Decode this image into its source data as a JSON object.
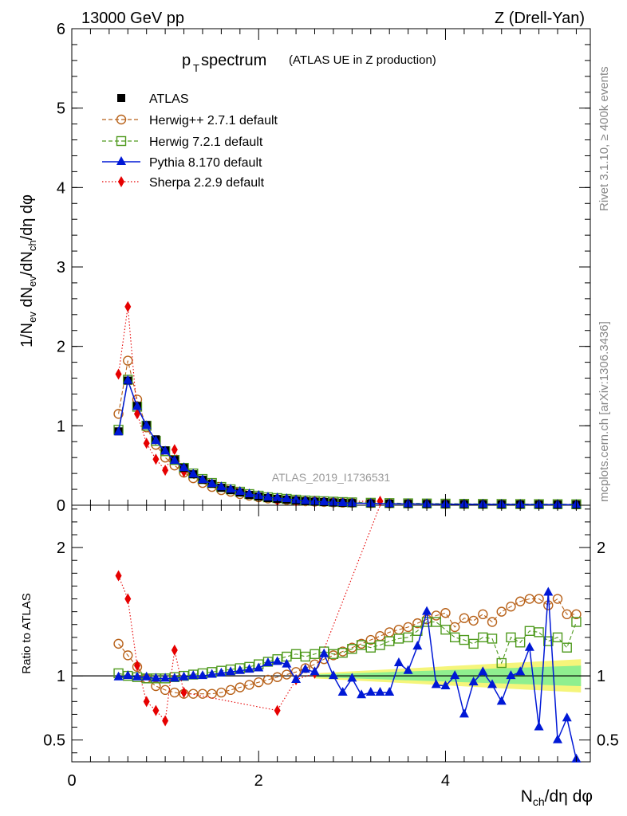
{
  "header": {
    "energy_label": "13000 GeV pp",
    "process_label": "Z (Drell-Yan)"
  },
  "side_labels": {
    "rivet": "Rivet 3.1.10, ≥ 400k events",
    "mcplots": "mcplots.cern.ch [arXiv:1306.3436]"
  },
  "colors": {
    "atlas": "#000000",
    "herwigpp": "#b8621a",
    "herwig7": "#4f9a1e",
    "pythia": "#0018d6",
    "sherpa": "#e60000",
    "band_yellow": "#f5f57a",
    "band_green": "#8fef8f"
  },
  "chart_data": [
    {
      "id": "main",
      "type": "line",
      "title_main": "p",
      "title_sub": "T",
      "title_rest": " spectrum",
      "title_note": "(ATLAS UE in Z production)",
      "ylabel_parts": [
        "1/N",
        "ev",
        " dN",
        "ev",
        "/dN",
        "ch",
        "/dη dφ"
      ],
      "watermark": "ATLAS_2019_I1736531",
      "xlim": [
        0,
        5.55
      ],
      "ylim": [
        0,
        6
      ],
      "yticks": [
        0,
        1,
        2,
        3,
        4,
        5,
        6
      ],
      "ytick_labels": [
        "0",
        "1",
        "2",
        "3",
        "4",
        "5",
        "6"
      ],
      "legend": [
        "ATLAS",
        "Herwig++ 2.7.1 default",
        "Herwig 7.2.1 default",
        "Pythia 8.170 default",
        "Sherpa 2.2.9 default"
      ],
      "series": [
        {
          "name": "ATLAS",
          "x": [
            0.5,
            0.6,
            0.7,
            0.8,
            0.9,
            1.0,
            1.1,
            1.2,
            1.3,
            1.4,
            1.5,
            1.6,
            1.7,
            1.8,
            1.9,
            2.0,
            2.1,
            2.2,
            2.3,
            2.4,
            2.5,
            2.6,
            2.7,
            2.8,
            2.9,
            3.0,
            3.2,
            3.4,
            3.6,
            3.8,
            4.0,
            4.2,
            4.4,
            4.6,
            4.8,
            5.0,
            5.2,
            5.4
          ],
          "y": [
            0.93,
            1.57,
            1.25,
            1.01,
            0.83,
            0.69,
            0.57,
            0.47,
            0.39,
            0.32,
            0.27,
            0.22,
            0.19,
            0.16,
            0.13,
            0.11,
            0.09,
            0.08,
            0.07,
            0.06,
            0.05,
            0.045,
            0.04,
            0.035,
            0.03,
            0.028,
            0.024,
            0.02,
            0.018,
            0.016,
            0.014,
            0.013,
            0.012,
            0.011,
            0.01,
            0.009,
            0.008,
            0.007
          ]
        },
        {
          "name": "Herwig++ 2.7.1 default",
          "x": [
            0.5,
            0.6,
            0.7,
            0.8,
            0.9,
            1.0,
            1.1,
            1.2,
            1.3,
            1.4,
            1.5,
            1.6,
            1.7,
            1.8,
            1.9,
            2.0,
            2.1,
            2.2,
            2.3,
            2.4,
            2.5,
            2.6,
            2.7,
            2.8,
            2.9,
            3.0,
            3.2,
            3.4,
            3.6,
            3.8,
            4.0,
            4.2,
            4.4,
            4.6,
            4.8,
            5.0,
            5.2,
            5.4
          ],
          "y": [
            1.15,
            1.82,
            1.33,
            0.98,
            0.76,
            0.6,
            0.5,
            0.41,
            0.34,
            0.28,
            0.23,
            0.19,
            0.17,
            0.14,
            0.12,
            0.1,
            0.085,
            0.075,
            0.066,
            0.058,
            0.05,
            0.045,
            0.04,
            0.036,
            0.032,
            0.03,
            0.026,
            0.022,
            0.02,
            0.018,
            0.016,
            0.015,
            0.014,
            0.013,
            0.012,
            0.011,
            0.01,
            0.009
          ]
        },
        {
          "name": "Herwig 7.2.1 default",
          "x": [
            0.5,
            0.6,
            0.7,
            0.8,
            0.9,
            1.0,
            1.1,
            1.2,
            1.3,
            1.4,
            1.5,
            1.6,
            1.7,
            1.8,
            1.9,
            2.0,
            2.1,
            2.2,
            2.3,
            2.4,
            2.5,
            2.6,
            2.7,
            2.8,
            2.9,
            3.0,
            3.2,
            3.4,
            3.6,
            3.8,
            4.0,
            4.2,
            4.4,
            4.6,
            4.8,
            5.0,
            5.2,
            5.4
          ],
          "y": [
            0.95,
            1.58,
            1.24,
            1.0,
            0.81,
            0.68,
            0.57,
            0.47,
            0.4,
            0.33,
            0.28,
            0.23,
            0.2,
            0.17,
            0.14,
            0.12,
            0.1,
            0.09,
            0.08,
            0.07,
            0.06,
            0.055,
            0.05,
            0.045,
            0.04,
            0.036,
            0.031,
            0.027,
            0.024,
            0.022,
            0.02,
            0.018,
            0.017,
            0.016,
            0.015,
            0.014,
            0.013,
            0.012
          ]
        },
        {
          "name": "Pythia 8.170 default",
          "x": [
            0.5,
            0.6,
            0.7,
            0.8,
            0.9,
            1.0,
            1.1,
            1.2,
            1.3,
            1.4,
            1.5,
            1.6,
            1.7,
            1.8,
            1.9,
            2.0,
            2.1,
            2.2,
            2.3,
            2.4,
            2.5,
            2.6,
            2.7,
            2.8,
            2.9,
            3.0,
            3.2,
            3.4,
            3.6,
            3.8,
            4.0,
            4.2,
            4.4,
            4.6,
            4.8,
            5.0,
            5.2,
            5.4
          ],
          "y": [
            0.92,
            1.57,
            1.24,
            1.0,
            0.81,
            0.68,
            0.56,
            0.47,
            0.39,
            0.32,
            0.27,
            0.23,
            0.2,
            0.17,
            0.14,
            0.12,
            0.1,
            0.09,
            0.08,
            0.065,
            0.055,
            0.048,
            0.042,
            0.036,
            0.03,
            0.026,
            0.022,
            0.018,
            0.016,
            0.015,
            0.013,
            0.012,
            0.011,
            0.01,
            0.009,
            0.008,
            0.007,
            0.006
          ]
        },
        {
          "name": "Sherpa 2.2.9 default",
          "x": [
            0.5,
            0.6,
            0.7,
            0.8,
            0.9,
            1.0,
            1.1,
            1.2,
            2.2,
            2.4,
            2.6,
            3.3
          ],
          "y": [
            1.65,
            2.5,
            1.15,
            0.78,
            0.58,
            0.44,
            0.7,
            0.42,
            0.06,
            0.05,
            0.05,
            0.05
          ]
        }
      ]
    },
    {
      "id": "ratio",
      "type": "line",
      "ylabel": "Ratio to ATLAS",
      "xlabel_parts": [
        "N",
        "ch",
        "/dη dφ"
      ],
      "xlim": [
        0,
        5.55
      ],
      "ylim": [
        0.33,
        2.33
      ],
      "xticks": [
        0,
        2,
        4
      ],
      "xtick_labels": [
        "0",
        "2",
        "4"
      ],
      "yticks": [
        0.5,
        1,
        2
      ],
      "ytick_labels": [
        "0.5",
        "1",
        "2"
      ],
      "band": {
        "x_from": 2.6,
        "x_to": 5.45,
        "yellow_half_width": [
          0.02,
          0.13
        ],
        "green_half_width": [
          0.01,
          0.08
        ]
      },
      "series": [
        {
          "name": "Herwig++ 2.7.1 default",
          "x": [
            0.5,
            0.6,
            0.7,
            0.8,
            0.9,
            1.0,
            1.1,
            1.2,
            1.3,
            1.4,
            1.5,
            1.6,
            1.7,
            1.8,
            1.9,
            2.0,
            2.1,
            2.2,
            2.3,
            2.4,
            2.5,
            2.6,
            2.7,
            2.8,
            2.9,
            3.0,
            3.1,
            3.2,
            3.3,
            3.4,
            3.5,
            3.6,
            3.7,
            3.8,
            3.9,
            4.0,
            4.1,
            4.2,
            4.3,
            4.4,
            4.5,
            4.6,
            4.7,
            4.8,
            4.9,
            5.0,
            5.1,
            5.2,
            5.3,
            5.4
          ],
          "y": [
            1.25,
            1.16,
            1.07,
            0.98,
            0.92,
            0.89,
            0.87,
            0.86,
            0.86,
            0.86,
            0.86,
            0.87,
            0.89,
            0.91,
            0.93,
            0.95,
            0.97,
            0.99,
            1.01,
            1.03,
            1.06,
            1.09,
            1.13,
            1.16,
            1.19,
            1.22,
            1.25,
            1.28,
            1.31,
            1.34,
            1.36,
            1.38,
            1.41,
            1.44,
            1.47,
            1.49,
            1.38,
            1.45,
            1.43,
            1.48,
            1.42,
            1.5,
            1.54,
            1.58,
            1.6,
            1.6,
            1.55,
            1.6,
            1.48,
            1.48
          ]
        },
        {
          "name": "Herwig 7.2.1 default",
          "x": [
            0.5,
            0.6,
            0.7,
            0.8,
            0.9,
            1.0,
            1.1,
            1.2,
            1.3,
            1.4,
            1.5,
            1.6,
            1.7,
            1.8,
            1.9,
            2.0,
            2.1,
            2.2,
            2.3,
            2.4,
            2.5,
            2.6,
            2.7,
            2.8,
            2.9,
            3.0,
            3.1,
            3.2,
            3.3,
            3.4,
            3.5,
            3.6,
            3.7,
            3.8,
            3.9,
            4.0,
            4.1,
            4.2,
            4.3,
            4.4,
            4.5,
            4.6,
            4.7,
            4.8,
            4.9,
            5.0,
            5.1,
            5.2,
            5.3,
            5.4
          ],
          "y": [
            1.02,
            1.0,
            0.99,
            0.98,
            0.98,
            0.98,
            0.99,
            1.0,
            1.01,
            1.02,
            1.03,
            1.04,
            1.05,
            1.06,
            1.07,
            1.09,
            1.11,
            1.13,
            1.15,
            1.17,
            1.15,
            1.17,
            1.19,
            1.17,
            1.18,
            1.21,
            1.24,
            1.22,
            1.24,
            1.27,
            1.29,
            1.3,
            1.35,
            1.42,
            1.42,
            1.36,
            1.3,
            1.28,
            1.25,
            1.3,
            1.29,
            1.1,
            1.3,
            1.26,
            1.35,
            1.34,
            1.27,
            1.3,
            1.22,
            1.42
          ]
        },
        {
          "name": "Pythia 8.170 default",
          "x": [
            0.5,
            0.6,
            0.7,
            0.8,
            0.9,
            1.0,
            1.1,
            1.2,
            1.3,
            1.4,
            1.5,
            1.6,
            1.7,
            1.8,
            1.9,
            2.0,
            2.1,
            2.2,
            2.3,
            2.4,
            2.5,
            2.6,
            2.7,
            2.8,
            2.9,
            3.0,
            3.1,
            3.2,
            3.3,
            3.4,
            3.5,
            3.6,
            3.7,
            3.8,
            3.9,
            4.0,
            4.1,
            4.2,
            4.3,
            4.4,
            4.5,
            4.6,
            4.7,
            4.8,
            4.9,
            5.0,
            5.1,
            5.2,
            5.3,
            5.4
          ],
          "y": [
            0.99,
            1.0,
            0.99,
            0.99,
            0.98,
            0.98,
            0.98,
            0.99,
            1.0,
            1.0,
            1.01,
            1.02,
            1.03,
            1.04,
            1.05,
            1.06,
            1.1,
            1.11,
            1.09,
            0.97,
            1.05,
            1.03,
            1.17,
            1.0,
            0.87,
            0.98,
            0.85,
            0.87,
            0.87,
            0.87,
            1.1,
            1.04,
            1.23,
            1.5,
            0.93,
            0.92,
            1.0,
            0.7,
            0.95,
            1.03,
            0.93,
            0.8,
            1.0,
            1.03,
            1.22,
            0.6,
            1.65,
            0.5,
            0.67,
            0.35
          ]
        },
        {
          "name": "Sherpa 2.2.9 default",
          "x": [
            0.5,
            0.6,
            0.7,
            0.8,
            0.9,
            1.0,
            1.1,
            1.2,
            2.2,
            2.4,
            2.6,
            3.3
          ],
          "y": [
            1.78,
            1.6,
            1.08,
            0.8,
            0.73,
            0.65,
            1.2,
            0.87,
            0.73,
            0.97,
            1.02,
            2.5
          ]
        }
      ]
    }
  ]
}
